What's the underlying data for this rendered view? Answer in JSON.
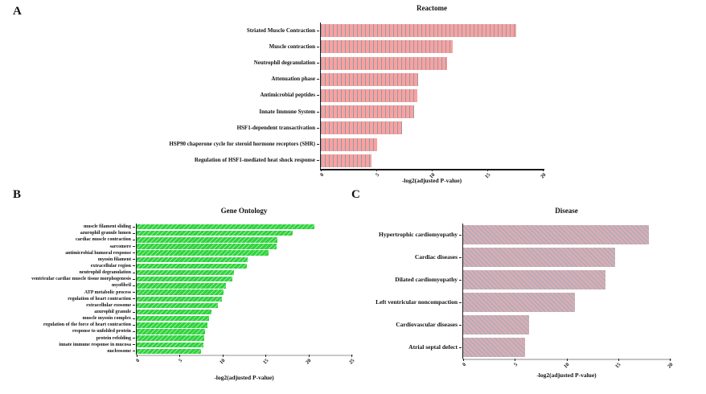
{
  "chart_data": [
    {
      "type": "bar",
      "orientation": "horizontal",
      "panel_letter": "A",
      "title": "Reactome",
      "xlabel": "-log2(adjusted P-value)",
      "categories": [
        "Striated Muscle Contraction",
        "Muscle contraction",
        "Neutrophil degranulation",
        "Attenuation phase",
        "Antimicrobial peptides",
        "Innate Immune System",
        "HSF1-dependent transactivation",
        "HSP90 chaperone cycle for steroid hormone receptors (SHR)",
        "Regulation of HSF1-mediated heat shock response"
      ],
      "values": [
        17.6,
        11.9,
        11.4,
        8.8,
        8.7,
        8.4,
        7.3,
        5.1,
        4.6
      ],
      "xticks": [
        0,
        5,
        10,
        15,
        20
      ],
      "xlim": [
        0,
        20
      ],
      "grid": false,
      "legend": false,
      "bar_color": "#f9a1a1",
      "hatch_style": "vertical",
      "hatch_color": "#939ca2"
    },
    {
      "type": "bar",
      "orientation": "horizontal",
      "panel_letter": "B",
      "title": "Gene Ontology",
      "xlabel": "-log2(adjusted P-value)",
      "categories": [
        "muscle filament sliding",
        "azurophil granule lumen",
        "cardiac muscle contraction",
        "sarcomere",
        "antimicrobial humoral response",
        "myosin filament",
        "extracellular region",
        "neutrophil degranulation",
        "ventricular cardiac muscle tissue morphogenesis",
        "myofibril",
        "ATP metabolic process",
        "regulation of heart contraction",
        "extracellular exosome",
        "azurophil granule",
        "muscle myosin complex",
        "regulation of the force of heart contraction",
        "response to unfolded protein",
        "protein refolding",
        "innate immune response in mucosa",
        "nucleosome"
      ],
      "values": [
        20.7,
        18.2,
        16.4,
        16.3,
        15.4,
        12.9,
        12.8,
        11.3,
        11.1,
        10.4,
        10.1,
        9.9,
        9.5,
        8.7,
        8.4,
        8.2,
        8.0,
        7.9,
        7.8,
        7.5
      ],
      "xticks": [
        0,
        5,
        10,
        15,
        20,
        25
      ],
      "xlim": [
        0,
        25
      ],
      "grid": false,
      "legend": false,
      "bar_color": "#2ed43c",
      "hatch_style": "forward-diagonal",
      "hatch_color": "rgba(255,255,255,0.5)"
    },
    {
      "type": "bar",
      "orientation": "horizontal",
      "panel_letter": "C",
      "title": "Disease",
      "xlabel": "-log2(adjusted P-value)",
      "categories": [
        "Hypertrophic cardiomyopathy",
        "Cardiac diseases",
        "Dilated cardiomyopathy",
        "Left ventricular noncompaction",
        "Cardiovascular diseases",
        "Atrial septal defect"
      ],
      "values": [
        18.0,
        14.7,
        13.8,
        10.8,
        6.4,
        6.0
      ],
      "xticks": [
        0,
        5,
        10,
        15,
        20
      ],
      "xlim": [
        0,
        20
      ],
      "grid": false,
      "legend": false,
      "bar_color": "#d7aeb2",
      "hatch_style": "back-diagonal",
      "hatch_color": "#a3a9c2"
    }
  ]
}
